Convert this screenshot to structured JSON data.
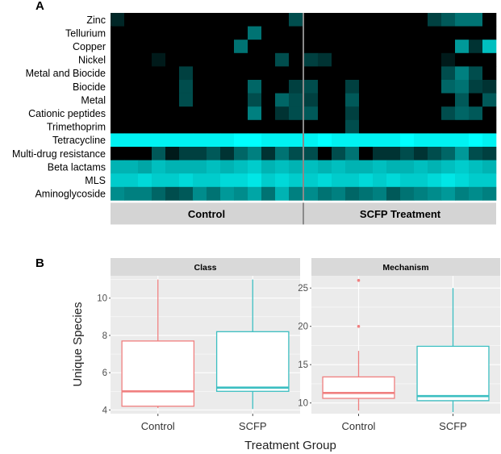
{
  "panels": {
    "a": "A",
    "b": "B"
  },
  "chart_data": [
    {
      "type": "heatmap",
      "panel": "A",
      "title": "",
      "groups": [
        "Control",
        "SCFP Treatment"
      ],
      "samples_per_group": 14,
      "value_scale": "0 = black (absent), 1 = bright cyan (highest abundance)",
      "colors": {
        "low": "#000000",
        "high": "#00ffff",
        "strip": "#d4d4d4",
        "divider": "#8a8a8a"
      },
      "rows": [
        {
          "label": "Zinc",
          "control": [
            0.15,
            0,
            0,
            0,
            0,
            0,
            0,
            0,
            0,
            0,
            0,
            0,
            0,
            0.3
          ],
          "scfp": [
            0,
            0,
            0,
            0,
            0,
            0,
            0,
            0,
            0,
            0.25,
            0.35,
            0.45,
            0.45,
            0
          ]
        },
        {
          "label": "Tellurium",
          "control": [
            0,
            0,
            0,
            0,
            0,
            0,
            0,
            0,
            0,
            0,
            0.45,
            0,
            0,
            0
          ],
          "scfp": [
            0,
            0,
            0,
            0,
            0,
            0,
            0,
            0,
            0,
            0,
            0,
            0,
            0,
            0
          ]
        },
        {
          "label": "Copper",
          "control": [
            0,
            0,
            0,
            0,
            0,
            0,
            0,
            0,
            0,
            0.45,
            0,
            0,
            0,
            0
          ],
          "scfp": [
            0,
            0,
            0,
            0,
            0,
            0,
            0,
            0,
            0,
            0,
            0,
            0.6,
            0.2,
            0.75
          ]
        },
        {
          "label": "Nickel",
          "control": [
            0,
            0,
            0,
            0.1,
            0,
            0,
            0,
            0,
            0,
            0,
            0,
            0,
            0.3,
            0
          ],
          "scfp": [
            0.25,
            0.2,
            0,
            0,
            0,
            0,
            0,
            0,
            0,
            0,
            0.1,
            0,
            0,
            0
          ]
        },
        {
          "label": "Metal and Biocide",
          "control": [
            0,
            0,
            0,
            0,
            0,
            0.25,
            0,
            0,
            0,
            0,
            0,
            0,
            0,
            0
          ],
          "scfp": [
            0,
            0,
            0,
            0,
            0,
            0,
            0,
            0,
            0,
            0,
            0.3,
            0.5,
            0.3,
            0
          ]
        },
        {
          "label": "Biocide",
          "control": [
            0,
            0,
            0,
            0,
            0,
            0.3,
            0,
            0,
            0,
            0,
            0.4,
            0,
            0,
            0.25
          ],
          "scfp": [
            0.3,
            0,
            0,
            0.25,
            0,
            0,
            0,
            0,
            0,
            0,
            0.4,
            0.45,
            0.25,
            0.2
          ]
        },
        {
          "label": "Metal",
          "control": [
            0,
            0,
            0,
            0,
            0,
            0.3,
            0,
            0,
            0,
            0,
            0.3,
            0,
            0.4,
            0.3
          ],
          "scfp": [
            0.25,
            0,
            0,
            0.35,
            0,
            0,
            0,
            0,
            0,
            0,
            0,
            0.35,
            0,
            0.35
          ]
        },
        {
          "label": "Cationic peptides",
          "control": [
            0,
            0,
            0,
            0,
            0,
            0,
            0,
            0,
            0,
            0,
            0.5,
            0,
            0.2,
            0.3
          ],
          "scfp": [
            0.35,
            0,
            0,
            0.25,
            0,
            0,
            0,
            0,
            0,
            0,
            0.3,
            0.4,
            0.35,
            0
          ]
        },
        {
          "label": "Trimethoprim",
          "control": [
            0,
            0,
            0,
            0,
            0,
            0,
            0,
            0,
            0,
            0,
            0,
            0,
            0,
            0
          ],
          "scfp": [
            0,
            0,
            0,
            0.3,
            0,
            0,
            0,
            0,
            0,
            0,
            0,
            0,
            0,
            0
          ]
        },
        {
          "label": "Tetracycline",
          "control": [
            0.95,
            0.95,
            0.95,
            0.95,
            0.95,
            0.95,
            0.95,
            0.95,
            0.95,
            1,
            1,
            0.95,
            0.95,
            0.95
          ],
          "scfp": [
            0.95,
            1,
            0.95,
            0.95,
            0.95,
            0.95,
            0.95,
            1,
            0.95,
            0.95,
            0.95,
            0.95,
            1,
            0.95
          ]
        },
        {
          "label": "Multi-drug resistance",
          "control": [
            0,
            0,
            0,
            0.35,
            0.1,
            0.25,
            0.25,
            0.35,
            0.2,
            0.4,
            0.5,
            0.2,
            0.45,
            0.3
          ],
          "scfp": [
            0.3,
            0,
            0.3,
            0.45,
            0,
            0.2,
            0.2,
            0.3,
            0.2,
            0.3,
            0.4,
            0.6,
            0.3,
            0.25
          ]
        },
        {
          "label": "Beta lactams",
          "control": [
            0.7,
            0.7,
            0.65,
            0.75,
            0.7,
            0.7,
            0.7,
            0.75,
            0.7,
            0.75,
            0.8,
            0.7,
            0.75,
            0.7
          ],
          "scfp": [
            0.75,
            0.7,
            0.75,
            0.7,
            0.7,
            0.75,
            0.7,
            0.7,
            0.75,
            0.7,
            0.75,
            0.8,
            0.75,
            0.7
          ]
        },
        {
          "label": "MLS",
          "control": [
            0.8,
            0.8,
            0.85,
            0.8,
            0.8,
            0.85,
            0.8,
            0.8,
            0.85,
            0.85,
            0.9,
            0.8,
            0.85,
            0.8
          ],
          "scfp": [
            0.8,
            0.85,
            0.8,
            0.8,
            0.85,
            0.8,
            0.85,
            0.8,
            0.8,
            0.85,
            0.9,
            0.85,
            0.8,
            0.8
          ]
        },
        {
          "label": "Aminoglycoside",
          "control": [
            0.55,
            0.5,
            0.5,
            0.4,
            0.3,
            0.35,
            0.55,
            0.45,
            0.6,
            0.55,
            0.65,
            0.45,
            0.7,
            0.5
          ],
          "scfp": [
            0.55,
            0.45,
            0.5,
            0.4,
            0.45,
            0.5,
            0.35,
            0.45,
            0.5,
            0.55,
            0.6,
            0.5,
            0.55,
            0.5
          ]
        }
      ]
    },
    {
      "type": "box",
      "panel": "B",
      "xlabel": "Treatment Group",
      "ylabel": "Unique Species",
      "facets": [
        {
          "title": "Class",
          "ylim": [
            3.8,
            11.2
          ],
          "yticks": [
            4,
            6,
            8,
            10
          ],
          "boxes": [
            {
              "group": "Control",
              "color": "#f07f7f",
              "min": 4.1,
              "q1": 4.2,
              "median": 5.0,
              "q3": 7.7,
              "max": 11.0,
              "outliers": []
            },
            {
              "group": "SCFP",
              "color": "#3bbec1",
              "min": 4.05,
              "q1": 5.0,
              "median": 5.2,
              "q3": 8.2,
              "max": 11.0,
              "outliers": []
            }
          ]
        },
        {
          "title": "Mechanism",
          "ylim": [
            8.6,
            26.6
          ],
          "yticks": [
            10,
            15,
            20,
            25
          ],
          "boxes": [
            {
              "group": "Control",
              "color": "#f07f7f",
              "min": 9.0,
              "q1": 10.6,
              "median": 11.3,
              "q3": 13.4,
              "max": 16.8,
              "outliers": [
                20,
                26
              ]
            },
            {
              "group": "SCFP",
              "color": "#3bbec1",
              "min": 8.8,
              "q1": 10.3,
              "median": 10.9,
              "q3": 17.4,
              "max": 25.0,
              "outliers": []
            }
          ]
        }
      ]
    }
  ]
}
